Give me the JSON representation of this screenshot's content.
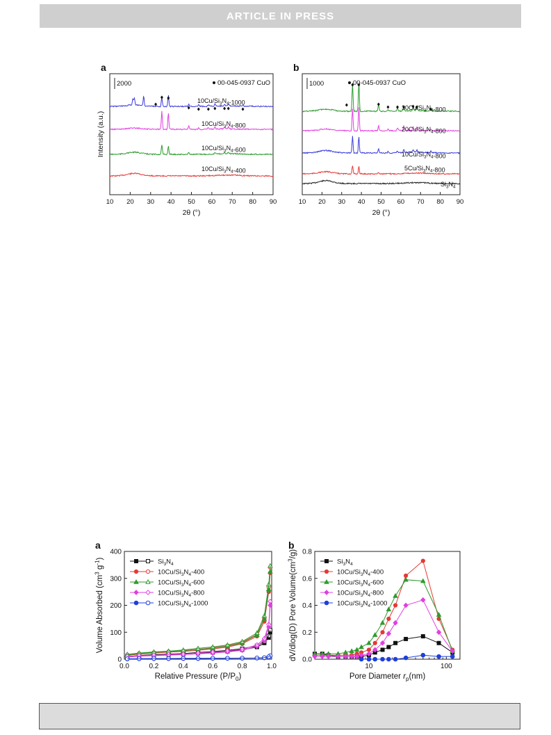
{
  "banner": "ARTICLE IN PRESS",
  "chart_data": [
    {
      "panel": "a",
      "type": "line",
      "xlabel": "2θ (°)",
      "ylabel": "Intensity (a.u.)",
      "xlim": [
        10,
        90
      ],
      "xticks": [
        "10",
        "20",
        "30",
        "40",
        "50",
        "60",
        "70",
        "80",
        "90"
      ],
      "scale_bar_label": "2000",
      "legend_label": "00-045-0937 CuO",
      "series": [
        {
          "name": "10Cu/Si3N4-400",
          "color": "#e53935"
        },
        {
          "name": "10Cu/Si3N4-600",
          "color": "#2e9a2e"
        },
        {
          "name": "10Cu/Si3N4-800",
          "color": "#e040e0"
        },
        {
          "name": "10Cu/Si3N4-1000",
          "color": "#3b3bdb"
        }
      ],
      "cuo_markers_2theta": [
        32.5,
        35.5,
        38.7,
        48.7,
        53.5,
        58.3,
        61.5,
        66.2,
        68.1,
        75.2
      ]
    },
    {
      "panel": "b",
      "type": "line",
      "xlabel": "2θ (°)",
      "ylabel": "",
      "xlim": [
        10,
        90
      ],
      "xticks": [
        "10",
        "20",
        "30",
        "40",
        "50",
        "60",
        "70",
        "80",
        "90"
      ],
      "scale_bar_label": "1000",
      "legend_label": "00-045-0937 CuO",
      "series": [
        {
          "name": "Si3N4",
          "color": "#222222"
        },
        {
          "name": "5Cu/Si3N4-800",
          "color": "#e53935"
        },
        {
          "name": "10Cu/Si3N4-800",
          "color": "#3b3bdb"
        },
        {
          "name": "20Cu/Si3N4-800",
          "color": "#e040e0"
        },
        {
          "name": "30Cu/Si3N4-800",
          "color": "#2e9a2e"
        }
      ],
      "cuo_markers_2theta": [
        32.5,
        35.5,
        38.7,
        48.7,
        53.5,
        58.3,
        61.5,
        66.2,
        68.1,
        75.2
      ]
    },
    {
      "panel": "a",
      "type": "line",
      "xlabel": "Relative Pressure (P/P0)",
      "ylabel": "Volume Absorbed (cm3 g-1)",
      "xlim": [
        0.0,
        1.0
      ],
      "ylim": [
        0,
        400
      ],
      "xticks": [
        "0.0",
        "0.2",
        "0.4",
        "0.6",
        "0.8",
        "1.0"
      ],
      "yticks": [
        "0",
        "100",
        "200",
        "300",
        "400"
      ],
      "legend_position": "top-left",
      "series": [
        {
          "name": "Si3N4",
          "color": "#111111",
          "adsorption": [
            [
              0.02,
              8
            ],
            [
              0.1,
              12
            ],
            [
              0.2,
              15
            ],
            [
              0.3,
              17
            ],
            [
              0.4,
              19
            ],
            [
              0.5,
              22
            ],
            [
              0.6,
              25
            ],
            [
              0.7,
              29
            ],
            [
              0.8,
              35
            ],
            [
              0.9,
              45
            ],
            [
              0.95,
              60
            ],
            [
              0.98,
              80
            ],
            [
              0.99,
              100
            ]
          ]
        },
        {
          "name": "10Cu/Si3N4-400",
          "color": "#e53935",
          "adsorption": [
            [
              0.02,
              14
            ],
            [
              0.1,
              19
            ],
            [
              0.2,
              23
            ],
            [
              0.3,
              26
            ],
            [
              0.4,
              29
            ],
            [
              0.5,
              33
            ],
            [
              0.6,
              38
            ],
            [
              0.7,
              45
            ],
            [
              0.8,
              57
            ],
            [
              0.9,
              85
            ],
            [
              0.95,
              140
            ],
            [
              0.98,
              250
            ],
            [
              0.99,
              320
            ]
          ]
        },
        {
          "name": "10Cu/Si3N4-600",
          "color": "#2e9a2e",
          "adsorption": [
            [
              0.02,
              16
            ],
            [
              0.1,
              21
            ],
            [
              0.2,
              25
            ],
            [
              0.3,
              28
            ],
            [
              0.4,
              32
            ],
            [
              0.5,
              36
            ],
            [
              0.6,
              41
            ],
            [
              0.7,
              48
            ],
            [
              0.8,
              60
            ],
            [
              0.9,
              90
            ],
            [
              0.95,
              150
            ],
            [
              0.98,
              260
            ],
            [
              0.99,
              325
            ]
          ]
        },
        {
          "name": "10Cu/Si3N4-800",
          "color": "#e040e0",
          "adsorption": [
            [
              0.02,
              8
            ],
            [
              0.1,
              11
            ],
            [
              0.2,
              13
            ],
            [
              0.3,
              15
            ],
            [
              0.4,
              17
            ],
            [
              0.5,
              20
            ],
            [
              0.6,
              23
            ],
            [
              0.7,
              27
            ],
            [
              0.8,
              33
            ],
            [
              0.9,
              48
            ],
            [
              0.95,
              70
            ],
            [
              0.98,
              120
            ],
            [
              0.99,
              200
            ]
          ]
        },
        {
          "name": "10Cu/Si3N4-1000",
          "color": "#1f3fdb",
          "adsorption": [
            [
              0.02,
              1
            ],
            [
              0.1,
              1.5
            ],
            [
              0.2,
              2
            ],
            [
              0.3,
              2
            ],
            [
              0.4,
              2.5
            ],
            [
              0.5,
              2.5
            ],
            [
              0.6,
              3
            ],
            [
              0.7,
              3
            ],
            [
              0.8,
              3.5
            ],
            [
              0.9,
              4
            ],
            [
              0.95,
              5
            ],
            [
              0.98,
              8
            ],
            [
              0.99,
              12
            ]
          ]
        }
      ]
    },
    {
      "panel": "b",
      "type": "line",
      "xlabel": "Pore Diameter rp(nm)",
      "ylabel": "dV/dlog(D) Pore Volume(cm3/g)",
      "xscale": "log",
      "xlim": [
        2,
        150
      ],
      "ylim": [
        0.0,
        0.8
      ],
      "xticks": [
        "10",
        "100"
      ],
      "yticks": [
        "0.0",
        "0.2",
        "0.4",
        "0.6",
        "0.8"
      ],
      "legend_position": "top-left",
      "series": [
        {
          "name": "Si3N4",
          "color": "#111111",
          "points": [
            [
              2,
              0.04
            ],
            [
              2.5,
              0.04
            ],
            [
              3,
              0.03
            ],
            [
              4,
              0.02
            ],
            [
              5,
              0.02
            ],
            [
              6,
              0.02
            ],
            [
              7,
              0.02
            ],
            [
              8,
              0.02
            ],
            [
              10,
              0.03
            ],
            [
              12,
              0.05
            ],
            [
              15,
              0.07
            ],
            [
              18,
              0.09
            ],
            [
              22,
              0.12
            ],
            [
              30,
              0.15
            ],
            [
              50,
              0.17
            ],
            [
              80,
              0.12
            ],
            [
              120,
              0.05
            ]
          ]
        },
        {
          "name": "10Cu/Si3N4-400",
          "color": "#e53935",
          "points": [
            [
              2,
              0.03
            ],
            [
              2.5,
              0.03
            ],
            [
              3,
              0.03
            ],
            [
              4,
              0.03
            ],
            [
              5,
              0.03
            ],
            [
              6,
              0.03
            ],
            [
              7,
              0.04
            ],
            [
              8,
              0.05
            ],
            [
              10,
              0.07
            ],
            [
              12,
              0.12
            ],
            [
              15,
              0.2
            ],
            [
              18,
              0.3
            ],
            [
              22,
              0.4
            ],
            [
              30,
              0.62
            ],
            [
              50,
              0.73
            ],
            [
              80,
              0.3
            ],
            [
              120,
              0.07
            ]
          ]
        },
        {
          "name": "10Cu/Si3N4-600",
          "color": "#2e9a2e",
          "points": [
            [
              2,
              0.04
            ],
            [
              2.5,
              0.04
            ],
            [
              3,
              0.04
            ],
            [
              4,
              0.04
            ],
            [
              5,
              0.05
            ],
            [
              6,
              0.06
            ],
            [
              7,
              0.07
            ],
            [
              8,
              0.09
            ],
            [
              10,
              0.12
            ],
            [
              12,
              0.18
            ],
            [
              15,
              0.27
            ],
            [
              18,
              0.37
            ],
            [
              22,
              0.47
            ],
            [
              30,
              0.59
            ],
            [
              50,
              0.58
            ],
            [
              80,
              0.33
            ],
            [
              120,
              0.06
            ]
          ]
        },
        {
          "name": "10Cu/Si3N4-800",
          "color": "#e040e0",
          "points": [
            [
              2,
              0.02
            ],
            [
              2.5,
              0.02
            ],
            [
              3,
              0.02
            ],
            [
              4,
              0.02
            ],
            [
              5,
              0.02
            ],
            [
              6,
              0.02
            ],
            [
              7,
              0.02
            ],
            [
              8,
              0.03
            ],
            [
              10,
              0.04
            ],
            [
              12,
              0.07
            ],
            [
              15,
              0.12
            ],
            [
              18,
              0.19
            ],
            [
              22,
              0.27
            ],
            [
              30,
              0.4
            ],
            [
              50,
              0.44
            ],
            [
              80,
              0.2
            ],
            [
              120,
              0.06
            ]
          ]
        },
        {
          "name": "10Cu/Si3N4-1000",
          "color": "#1f3fdb",
          "points": [
            [
              8,
              0.0
            ],
            [
              10,
              0.0
            ],
            [
              12,
              0.0
            ],
            [
              15,
              0.0
            ],
            [
              18,
              0.0
            ],
            [
              22,
              0.0
            ],
            [
              30,
              0.01
            ],
            [
              50,
              0.03
            ],
            [
              80,
              0.02
            ],
            [
              120,
              0.02
            ]
          ]
        }
      ]
    }
  ],
  "labels": {
    "fig1a_letter": "a",
    "fig1b_letter": "b",
    "fig2a_letter": "a",
    "fig2b_letter": "b"
  }
}
